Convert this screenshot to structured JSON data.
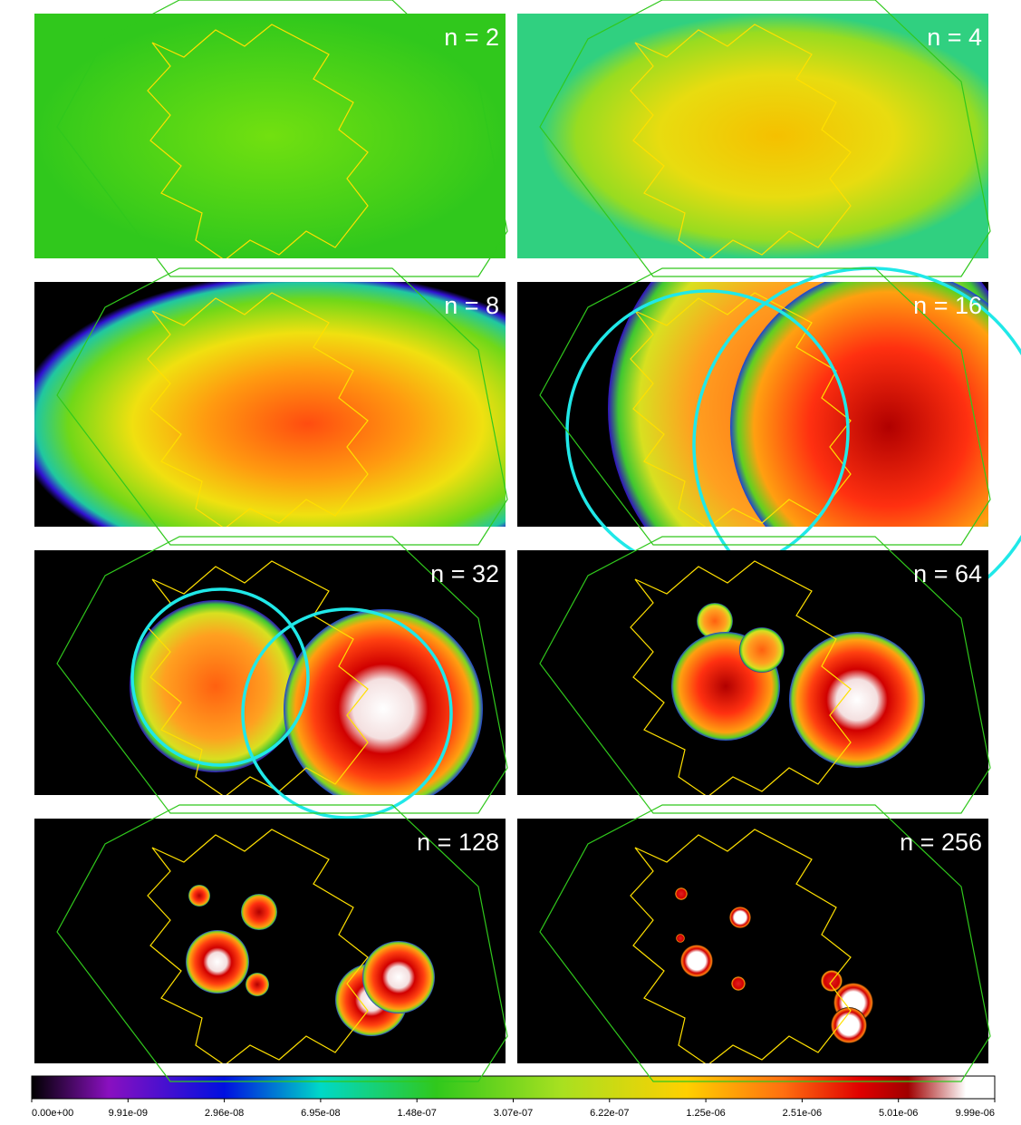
{
  "panels": [
    {
      "label": "n = 2"
    },
    {
      "label": "n = 4"
    },
    {
      "label": "n = 8"
    },
    {
      "label": "n = 16"
    },
    {
      "label": "n = 32"
    },
    {
      "label": "n = 64"
    },
    {
      "label": "n = 128"
    },
    {
      "label": "n = 256"
    }
  ],
  "colorbar": {
    "ticks": [
      {
        "value": 0,
        "label": "0.00e+00"
      },
      {
        "value": 9.91e-09,
        "label": "9.91e-09"
      },
      {
        "value": 2.96e-08,
        "label": "2.96e-08"
      },
      {
        "value": 6.95e-08,
        "label": "6.95e-08"
      },
      {
        "value": 1.48e-07,
        "label": "1.48e-07"
      },
      {
        "value": 3.07e-07,
        "label": "3.07e-07"
      },
      {
        "value": 6.22e-07,
        "label": "6.22e-07"
      },
      {
        "value": 1.25e-06,
        "label": "1.25e-06"
      },
      {
        "value": 2.51e-06,
        "label": "2.51e-06"
      },
      {
        "value": 5.01e-06,
        "label": "5.01e-06"
      },
      {
        "value": 9.99e-06,
        "label": "9.99e-06"
      }
    ]
  }
}
